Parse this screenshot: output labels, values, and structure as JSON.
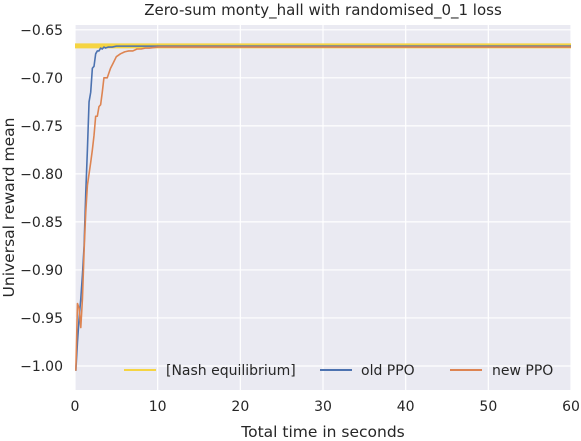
{
  "chart_data": {
    "type": "line",
    "title": "Zero-sum monty_hall with randomised_0_1 loss",
    "xlabel": "Total time in seconds",
    "ylabel": "Universal reward mean",
    "xlim": [
      0,
      60
    ],
    "ylim": [
      -1.025,
      -0.645
    ],
    "x_ticks": [
      0,
      10,
      20,
      30,
      40,
      50,
      60
    ],
    "x_tick_labels": [
      "0",
      "10",
      "20",
      "30",
      "40",
      "50",
      "60"
    ],
    "y_ticks": [
      -0.65,
      -0.7,
      -0.75,
      -0.8,
      -0.85,
      -0.9,
      -0.95,
      -1.0
    ],
    "y_tick_labels": [
      "−0.65",
      "−0.70",
      "−0.75",
      "−0.80",
      "−0.85",
      "−0.90",
      "−0.95",
      "−1.00"
    ],
    "grid": true,
    "legend_position": "bottom",
    "colors": {
      "background": "#eaeaf2",
      "grid": "#ffffff",
      "nash": "#f5d442",
      "old_ppo": "#4c72b0",
      "new_ppo": "#dd8452"
    },
    "series": [
      {
        "name": "[Nash equilibrium]",
        "color": "#f5d442",
        "x": [
          0,
          60
        ],
        "y": [
          -0.6667,
          -0.6667
        ]
      },
      {
        "name": "old PPO",
        "color": "#4c72b0",
        "x": [
          0.1,
          0.3,
          0.5,
          0.7,
          0.9,
          1.1,
          1.3,
          1.5,
          1.7,
          1.9,
          2.1,
          2.3,
          2.5,
          2.7,
          2.9,
          3.1,
          3.3,
          3.5,
          3.7,
          4.0,
          4.5,
          5.0,
          5.5,
          6.0,
          7.0,
          8.0,
          9.0,
          10.0,
          15.0,
          20.0,
          30.0,
          40.0,
          50.0,
          60.0
        ],
        "y": [
          -1.005,
          -0.975,
          -0.95,
          -0.93,
          -0.905,
          -0.875,
          -0.82,
          -0.775,
          -0.725,
          -0.715,
          -0.69,
          -0.688,
          -0.675,
          -0.672,
          -0.672,
          -0.669,
          -0.67,
          -0.668,
          -0.669,
          -0.668,
          -0.668,
          -0.667,
          -0.667,
          -0.667,
          -0.667,
          -0.667,
          -0.667,
          -0.667,
          -0.667,
          -0.667,
          -0.667,
          -0.667,
          -0.667,
          -0.667
        ]
      },
      {
        "name": "new PPO",
        "color": "#dd8452",
        "x": [
          0.1,
          0.3,
          0.5,
          0.7,
          0.9,
          1.1,
          1.3,
          1.5,
          1.7,
          1.9,
          2.1,
          2.3,
          2.5,
          2.7,
          2.9,
          3.1,
          3.3,
          3.5,
          3.7,
          3.9,
          4.1,
          4.3,
          4.6,
          5.0,
          5.5,
          6.0,
          6.5,
          7.0,
          7.5,
          8.0,
          8.5,
          9.0,
          10.0,
          12.0,
          15.0,
          20.0,
          30.0,
          40.0,
          50.0,
          60.0
        ],
        "y": [
          -1.005,
          -0.935,
          -0.94,
          -0.96,
          -0.93,
          -0.88,
          -0.84,
          -0.812,
          -0.8,
          -0.788,
          -0.775,
          -0.76,
          -0.74,
          -0.74,
          -0.73,
          -0.728,
          -0.715,
          -0.7,
          -0.7,
          -0.7,
          -0.695,
          -0.69,
          -0.685,
          -0.678,
          -0.675,
          -0.673,
          -0.672,
          -0.672,
          -0.67,
          -0.67,
          -0.669,
          -0.669,
          -0.668,
          -0.668,
          -0.668,
          -0.668,
          -0.668,
          -0.668,
          -0.668,
          -0.668
        ]
      }
    ]
  }
}
